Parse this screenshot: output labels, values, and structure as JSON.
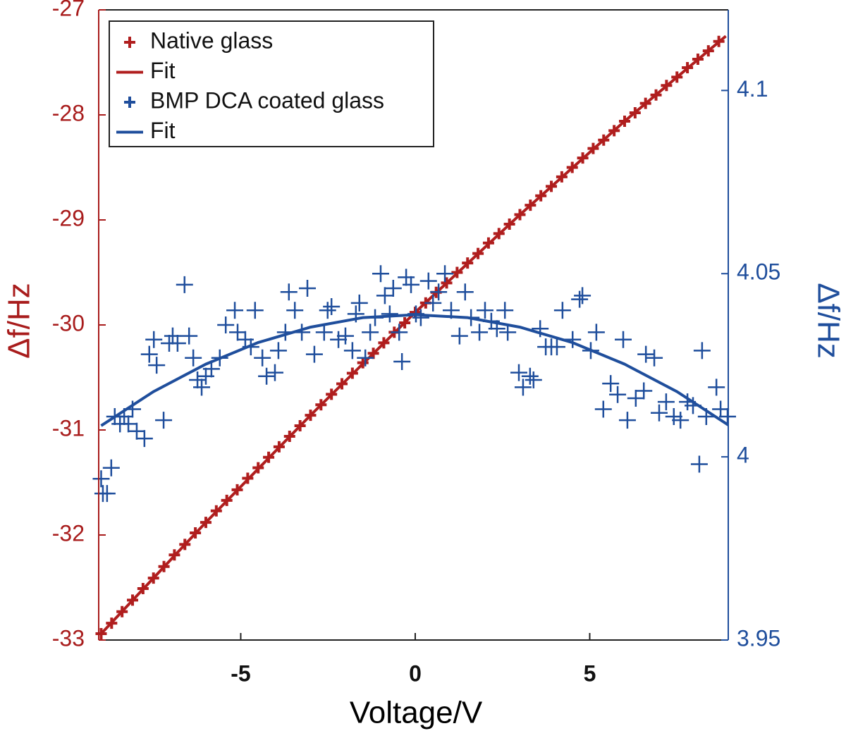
{
  "chart_data": {
    "type": "scatter",
    "xlabel": "Voltage/V",
    "ylabel": "Δf/Hz",
    "y2label": "Δf/Hz",
    "xlim": [
      -9.07,
      8.97
    ],
    "ylim": [
      -33,
      -27
    ],
    "y2lim": [
      3.95,
      4.122
    ],
    "xticks": [
      -5,
      0,
      5
    ],
    "yticks": [
      -33,
      -32,
      -31,
      -30,
      -29,
      -28,
      -27
    ],
    "y2ticks": [
      3.95,
      4,
      4.05,
      4.1
    ],
    "y_color": "#a81c1c",
    "y2_color": "#1f4e9c",
    "legend": "upper left",
    "series": [
      {
        "name": "Native glass",
        "color": "#b01e1e",
        "marker": "plus",
        "x": [
          -9.0,
          -8.7,
          -8.4,
          -8.1,
          -7.8,
          -7.5,
          -7.2,
          -6.9,
          -6.6,
          -6.3,
          -6.0,
          -5.7,
          -5.4,
          -5.1,
          -4.8,
          -4.5,
          -4.2,
          -3.9,
          -3.6,
          -3.3,
          -3.0,
          -2.7,
          -2.4,
          -2.1,
          -1.8,
          -1.5,
          -1.2,
          -0.9,
          -0.6,
          -0.3,
          0.0,
          0.3,
          0.6,
          0.9,
          1.2,
          1.5,
          1.8,
          2.1,
          2.4,
          2.7,
          3.0,
          3.3,
          3.6,
          3.9,
          4.2,
          4.5,
          4.8,
          5.1,
          5.4,
          5.7,
          6.0,
          6.3,
          6.6,
          6.9,
          7.2,
          7.5,
          7.8,
          8.1,
          8.4,
          8.7
        ],
        "values": [
          -32.94,
          -32.84,
          -32.73,
          -32.62,
          -32.51,
          -32.41,
          -32.3,
          -32.19,
          -32.09,
          -31.98,
          -31.88,
          -31.77,
          -31.67,
          -31.57,
          -31.46,
          -31.36,
          -31.26,
          -31.16,
          -31.06,
          -30.96,
          -30.86,
          -30.76,
          -30.66,
          -30.56,
          -30.46,
          -30.36,
          -30.27,
          -30.17,
          -30.07,
          -29.98,
          -29.88,
          -29.79,
          -29.69,
          -29.6,
          -29.5,
          -29.41,
          -29.32,
          -29.22,
          -29.13,
          -29.04,
          -28.95,
          -28.86,
          -28.77,
          -28.68,
          -28.59,
          -28.5,
          -28.41,
          -28.32,
          -28.24,
          -28.15,
          -28.06,
          -27.98,
          -27.89,
          -27.81,
          -27.72,
          -27.64,
          -27.55,
          -27.47,
          -27.39,
          -27.3
        ]
      },
      {
        "name": "Fit",
        "color": "#b01e1e",
        "marker": "line",
        "x": [
          -9,
          -6,
          -3,
          0,
          3,
          6,
          8.9
        ],
        "values": [
          -32.94,
          -31.88,
          -30.86,
          -29.88,
          -28.95,
          -28.06,
          -27.25
        ]
      },
      {
        "name": "BMP DCA coated glass",
        "color": "#1f4e9c",
        "marker": "plus",
        "axis": "y2",
        "x": [
          -9.0,
          -8.95,
          -8.83,
          -8.71,
          -8.61,
          -8.46,
          -8.34,
          -8.22,
          -8.1,
          -7.98,
          -7.76,
          -7.62,
          -7.49,
          -7.41,
          -7.21,
          -7.05,
          -6.95,
          -6.81,
          -6.61,
          -6.48,
          -6.36,
          -6.24,
          -6.12,
          -6.0,
          -5.84,
          -5.6,
          -5.43,
          -5.17,
          -5.09,
          -4.87,
          -4.71,
          -4.59,
          -4.38,
          -4.26,
          -4.02,
          -3.92,
          -3.72,
          -3.62,
          -3.45,
          -3.25,
          -3.09,
          -2.89,
          -2.61,
          -2.51,
          -2.4,
          -2.2,
          -2.0,
          -1.8,
          -1.7,
          -1.6,
          -1.43,
          -1.29,
          -1.15,
          -0.99,
          -0.87,
          -0.73,
          -0.63,
          -0.46,
          -0.38,
          -0.26,
          -0.12,
          0.02,
          0.16,
          0.38,
          0.51,
          0.67,
          0.85,
          1.03,
          1.27,
          1.43,
          1.6,
          1.84,
          2.0,
          2.18,
          2.34,
          2.57,
          2.65,
          2.97,
          3.09,
          3.29,
          3.39,
          3.58,
          3.74,
          3.9,
          4.06,
          4.22,
          4.51,
          4.71,
          4.79,
          5.03,
          5.19,
          5.39,
          5.6,
          5.8,
          5.96,
          6.08,
          6.32,
          6.55,
          6.61,
          6.85,
          6.99,
          7.19,
          7.41,
          7.6,
          7.8,
          7.96,
          8.14,
          8.22,
          8.34,
          8.63,
          8.75,
          8.95
        ],
        "values": [
          3.994,
          3.99,
          3.99,
          3.997,
          4.011,
          4.009,
          4.011,
          4.009,
          4.013,
          4.007,
          4.005,
          4.028,
          4.032,
          4.025,
          4.01,
          4.031,
          4.033,
          4.031,
          4.047,
          4.033,
          4.027,
          4.021,
          4.019,
          4.022,
          4.024,
          4.027,
          4.036,
          4.04,
          4.034,
          4.032,
          4.03,
          4.04,
          4.027,
          4.022,
          4.023,
          4.029,
          4.034,
          4.045,
          4.04,
          4.034,
          4.046,
          4.028,
          4.034,
          4.04,
          4.041,
          4.032,
          4.033,
          4.029,
          4.039,
          4.042,
          4.027,
          4.034,
          4.038,
          4.05,
          4.044,
          4.039,
          4.046,
          4.034,
          4.026,
          4.049,
          4.047,
          4.039,
          4.038,
          4.048,
          4.042,
          4.045,
          4.05,
          4.04,
          4.033,
          4.045,
          4.038,
          4.034,
          4.04,
          4.037,
          4.035,
          4.04,
          4.034,
          4.023,
          4.019,
          4.022,
          4.021,
          4.035,
          4.03,
          4.03,
          4.03,
          4.04,
          4.032,
          4.043,
          4.044,
          4.029,
          4.034,
          4.013,
          4.02,
          4.017,
          4.032,
          4.01,
          4.016,
          4.018,
          4.028,
          4.027,
          4.012,
          4.015,
          4.011,
          4.01,
          4.015,
          4.014,
          3.998,
          4.029,
          4.011,
          4.019,
          4.013,
          4.011
        ]
      },
      {
        "name": "Fit",
        "color": "#1f4e9c",
        "marker": "line",
        "axis": "y2",
        "x": [
          -9,
          -7.5,
          -6,
          -4.5,
          -3,
          -1.5,
          0,
          1.5,
          3,
          4.5,
          6,
          7.5,
          8.97
        ],
        "values": [
          4.0085,
          4.0178,
          4.0253,
          4.0312,
          4.0354,
          4.038,
          4.0388,
          4.038,
          4.0354,
          4.0312,
          4.0253,
          4.0178,
          4.0087
        ]
      }
    ]
  }
}
